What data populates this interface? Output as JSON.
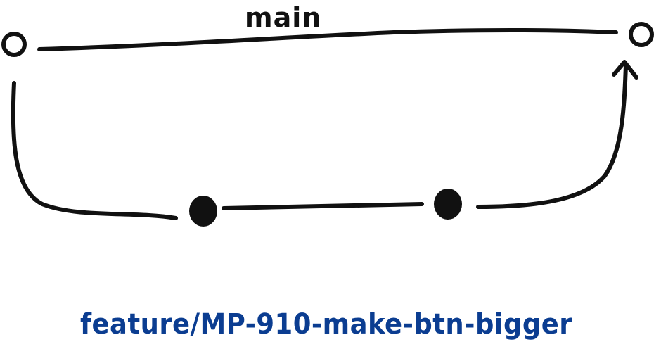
{
  "labels": {
    "main_branch": "main",
    "feature_branch": "feature/MP-910-make-btn-bigger"
  },
  "nodes": [
    {
      "name": "main-start-commit",
      "style": "hollow"
    },
    {
      "name": "feature-commit-1",
      "style": "filled"
    },
    {
      "name": "feature-commit-2",
      "style": "filled"
    },
    {
      "name": "main-merge-commit",
      "style": "hollow"
    }
  ],
  "colors": {
    "line": "#111111",
    "feature_label": "#0b3d91",
    "background": "#ffffff"
  }
}
